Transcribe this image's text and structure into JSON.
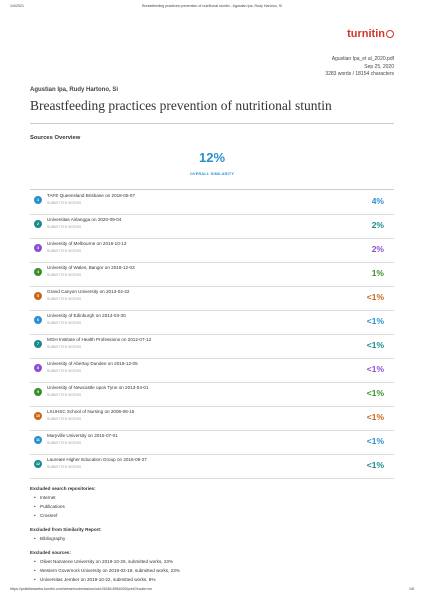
{
  "header": {
    "date": "1/4/2021",
    "title": "Breastfeeding practices prevention of nutritional stuntin - Agustian Ipa, Rudy Hartono, Si"
  },
  "logo": {
    "text": "turnitin"
  },
  "meta": {
    "filename": "Agustian Ipa_et al_2020.pdf",
    "date": "Sep 25, 2020",
    "counts": "3283 words / 18154 characters"
  },
  "authors": "Agustian Ipa, Rudy Hartono, Si",
  "doc_title": "Breastfeeding practices prevention of nutritional stuntin",
  "sources_heading": "Sources Overview",
  "similarity": {
    "percent": "12%",
    "label": "OVERALL SIMILARITY"
  },
  "sources": [
    {
      "num": "1",
      "name": "TAFE Queensland Brisbane on 2018-05-07",
      "type": "SUBMITTED WORKS",
      "pct": "4%",
      "color": "#2a8fcf"
    },
    {
      "num": "2",
      "name": "Universitas Airlangga on 2020-09-04",
      "type": "SUBMITTED WORKS",
      "pct": "2%",
      "color": "#1a8a8a"
    },
    {
      "num": "3",
      "name": "University of Melbourne on 2016-10-13",
      "type": "SUBMITTED WORKS",
      "pct": "2%",
      "color": "#8a4fcf"
    },
    {
      "num": "4",
      "name": "University of Wales, Bangor on 2018-12-03",
      "type": "SUBMITTED WORKS",
      "pct": "1%",
      "color": "#3a8f2a"
    },
    {
      "num": "5",
      "name": "Grand Canyon University on 2013-04-22",
      "type": "SUBMITTED WORKS",
      "pct": "<1%",
      "color": "#c8671a"
    },
    {
      "num": "6",
      "name": "University of Edinburgh on 2014-03-30",
      "type": "SUBMITTED WORKS",
      "pct": "<1%",
      "color": "#2a8fcf"
    },
    {
      "num": "7",
      "name": "MGH Institute of Health Professions on 2012-07-12",
      "type": "SUBMITTED WORKS",
      "pct": "<1%",
      "color": "#1a8a8a"
    },
    {
      "num": "8",
      "name": "University of Abertay Dundee on 2018-12-05",
      "type": "SUBMITTED WORKS",
      "pct": "<1%",
      "color": "#8a4fcf"
    },
    {
      "num": "9",
      "name": "University of Newcastle upon Tyne on 2013-04-01",
      "type": "SUBMITTED WORKS",
      "pct": "<1%",
      "color": "#3a8f2a"
    },
    {
      "num": "10",
      "name": "LSUHSC School of Nursing on 2006-08-15",
      "type": "SUBMITTED WORKS",
      "pct": "<1%",
      "color": "#c8671a"
    },
    {
      "num": "11",
      "name": "Maryville University on 2015-07-01",
      "type": "SUBMITTED WORKS",
      "pct": "<1%",
      "color": "#2a8fcf"
    },
    {
      "num": "12",
      "name": "Laureate Higher Education Group on 2016-09-27",
      "type": "SUBMITTED WORKS",
      "pct": "<1%",
      "color": "#1a8a8a"
    }
  ],
  "excluded": [
    {
      "heading": "Excluded search repositories:",
      "items": [
        "Internet",
        "Publications",
        "Crossref"
      ]
    },
    {
      "heading": "Excluded from Similarity Report:",
      "items": [
        "Bibliography"
      ]
    },
    {
      "heading": "Excluded sources:",
      "items": [
        "Olivet Nazarene University on 2019-10-26, submitted works, 23%",
        "Western Governors University on 2019-02-19, submitted works, 23%",
        "Universitas Jember on 2019-10-22, submitted works, 8%"
      ]
    }
  ],
  "footer": {
    "url": "https://pollstilanwebs.turnitin.com/viewer/submissions/oid:26284:8964093/print?locale=en",
    "page": "1/8"
  }
}
